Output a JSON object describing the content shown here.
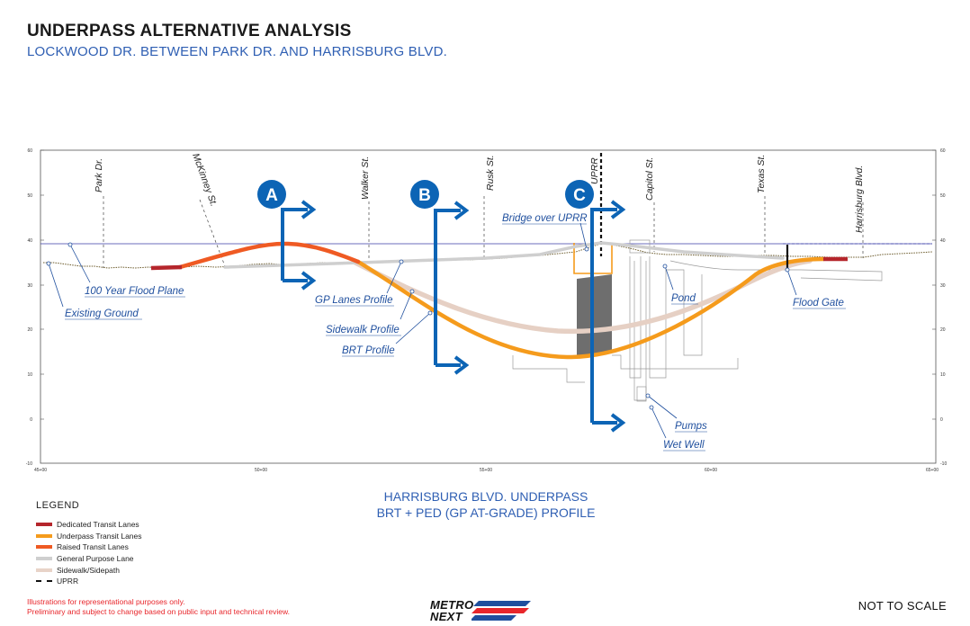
{
  "header": {
    "title": "UNDERPASS ALTERNATIVE ANALYSIS",
    "subtitle": "LOCKWOOD DR. BETWEEN PARK DR. AND HARRISBURG BLVD."
  },
  "chart": {
    "y_ticks": [
      "60",
      "50",
      "40",
      "30",
      "20",
      "10",
      "0",
      "-10"
    ],
    "x_ticks": [
      "45+00",
      "50+00",
      "55+00",
      "60+00",
      "65+00"
    ],
    "cross_streets": [
      "Park Dr.",
      "McKinney St.",
      "Walker St.",
      "Rusk St.",
      "UPRR",
      "Capitol St.",
      "Texas St.",
      "Harrisburg Blvd."
    ],
    "markers": [
      "A",
      "B",
      "C"
    ],
    "callouts": {
      "flood_plane": "100 Year Flood Plane",
      "existing_ground": "Existing Ground",
      "gp_lanes": "GP Lanes Profile",
      "sidewalk": "Sidewalk Profile",
      "brt": "BRT Profile",
      "bridge": "Bridge over UPRR",
      "pond": "Pond",
      "flood_gate": "Flood Gate",
      "pumps": "Pumps",
      "wet_well": "Wet Well"
    },
    "colors": {
      "marker": "#0c64b5",
      "callout": "#1f4f9e",
      "dedicated_transit": "#b5262c",
      "underpass_transit": "#f59b1c",
      "raised_transit": "#ef5a23",
      "general_purpose": "#cfcfcf",
      "sidewalk": "#e8d3c8",
      "flood_line": "#3a3ea8"
    }
  },
  "legend": {
    "title": "LEGEND",
    "items": [
      {
        "label": "Dedicated Transit Lanes",
        "color": "#b5262c"
      },
      {
        "label": "Underpass Transit Lanes",
        "color": "#f59b1c"
      },
      {
        "label": "Raised Transit Lanes",
        "color": "#ef5a23"
      },
      {
        "label": "General Purpose Lane",
        "color": "#cfcfcf"
      },
      {
        "label": "Sidewalk/Sidepath",
        "color": "#e8d3c8"
      },
      {
        "label": "UPRR",
        "color": "#111111"
      }
    ]
  },
  "caption": {
    "line1": "HARRISBURG BLVD. UNDERPASS",
    "line2": "BRT + PED (GP AT-GRADE) PROFILE"
  },
  "disclaimer": {
    "line1": "Illustrations for representational purposes only.",
    "line2": "Preliminary and subject to change based on public input and technical review."
  },
  "logo": {
    "line1": "METRO",
    "line2": "NEXT"
  },
  "scale_note": "NOT TO SCALE"
}
